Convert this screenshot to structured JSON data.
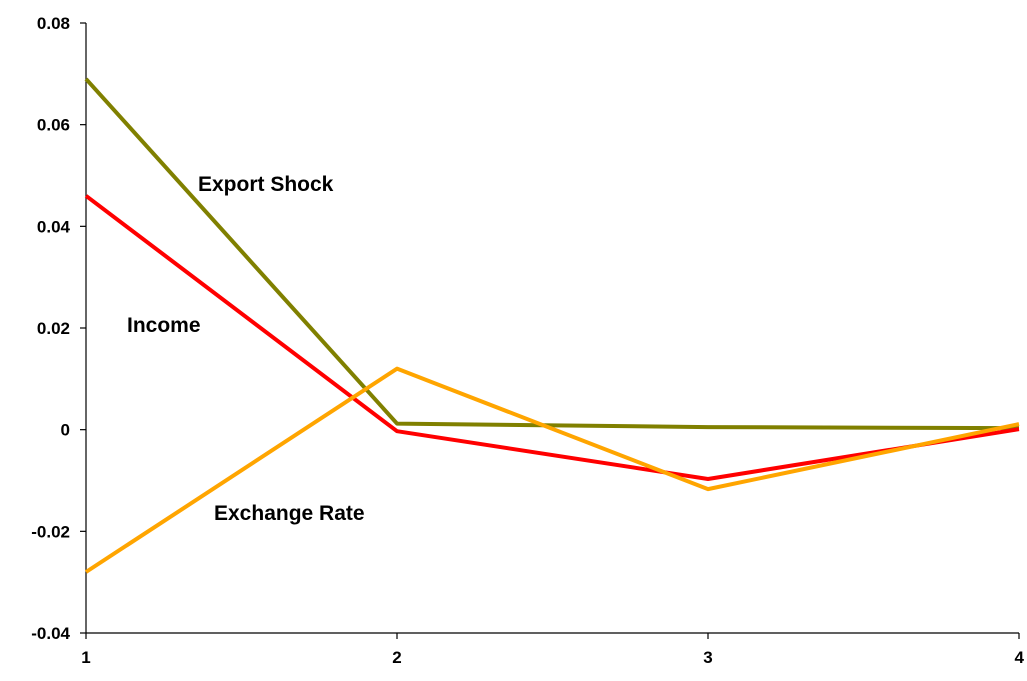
{
  "chart_data": {
    "type": "line",
    "title": "",
    "xlabel": "",
    "ylabel": "",
    "x": [
      1,
      2,
      3,
      4
    ],
    "x_tick_labels": [
      "1",
      "2",
      "3",
      "4"
    ],
    "ylim": [
      -0.04,
      0.08
    ],
    "y_ticks": [
      -0.04,
      -0.02,
      0,
      0.02,
      0.04,
      0.06,
      0.08
    ],
    "y_tick_labels": [
      "-0.04",
      "-0.02",
      "0",
      "0.02",
      "0.04",
      "0.06",
      "0.08"
    ],
    "grid": false,
    "legend": "none",
    "series": [
      {
        "name": "Export Shock",
        "color": "#808000",
        "values": [
          0.069,
          0.0012,
          0.0005,
          0.0003
        ]
      },
      {
        "name": "Income",
        "color": "#ff0000",
        "values": [
          0.046,
          -0.0003,
          -0.0097,
          0.0001
        ]
      },
      {
        "name": "Exchange Rate",
        "color": "#ffa500",
        "values": [
          -0.028,
          0.012,
          -0.0117,
          0.0011
        ]
      }
    ]
  }
}
